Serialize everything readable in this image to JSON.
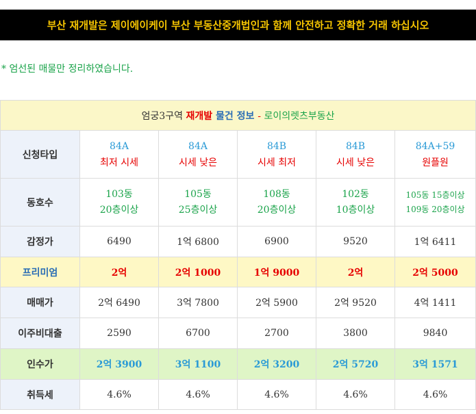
{
  "banner": "부산 재개발은 제이에이케이 부산 부동산중개법인과 함께 안전하고 정확한 거래 하십시오",
  "note": "* 엄선된 매물만 정리하였습니다.",
  "table_title": {
    "dark": "엄궁3구역 ",
    "red": "재개발",
    "blue": " 물건 정보 ",
    "dash": "-",
    "green": " 로이의렛츠부동산"
  },
  "row_labels": {
    "type": "신청타입",
    "unit": "동호수",
    "appraisal": "감정가",
    "premium": "프리미엄",
    "sale": "매매가",
    "loan": "이주비대출",
    "acquisition": "인수가",
    "tax": "취득세"
  },
  "columns": [
    {
      "type_main": "84A",
      "type_sub": "최저 시세",
      "unit_1": "103동",
      "unit_2": "20층이상",
      "appraisal": "6490",
      "premium": "2억",
      "sale": "2억 6490",
      "loan": "2590",
      "acquisition": "2억 3900",
      "tax": "4.6%"
    },
    {
      "type_main": "84A",
      "type_sub": "시세 낮은",
      "unit_1": "105동",
      "unit_2": "25층이상",
      "appraisal": "1억 6800",
      "premium": "2억 1000",
      "sale": "3억 7800",
      "loan": "6700",
      "acquisition": "3억 1100",
      "tax": "4.6%"
    },
    {
      "type_main": "84B",
      "type_sub": "시세 최저",
      "unit_1": "108동",
      "unit_2": "20층이상",
      "appraisal": "6900",
      "premium": "1억 9000",
      "sale": "2억 5900",
      "loan": "2700",
      "acquisition": "2억 3200",
      "tax": "4.6%"
    },
    {
      "type_main": "84B",
      "type_sub": "시세 낮은",
      "unit_1": "102동",
      "unit_2": "10층이상",
      "appraisal": "9520",
      "premium": "2억",
      "sale": "2억 9520",
      "loan": "3800",
      "acquisition": "2억 5720",
      "tax": "4.6%"
    },
    {
      "type_main": "84A+59",
      "type_sub": "원플원",
      "unit_1": "105동 15층이상",
      "unit_2": "109동 20층이상",
      "appraisal": "1억 6411",
      "premium": "2억 5000",
      "sale": "4억 1411",
      "loan": "9840",
      "acquisition": "3억 1571",
      "tax": "4.6%"
    }
  ]
}
